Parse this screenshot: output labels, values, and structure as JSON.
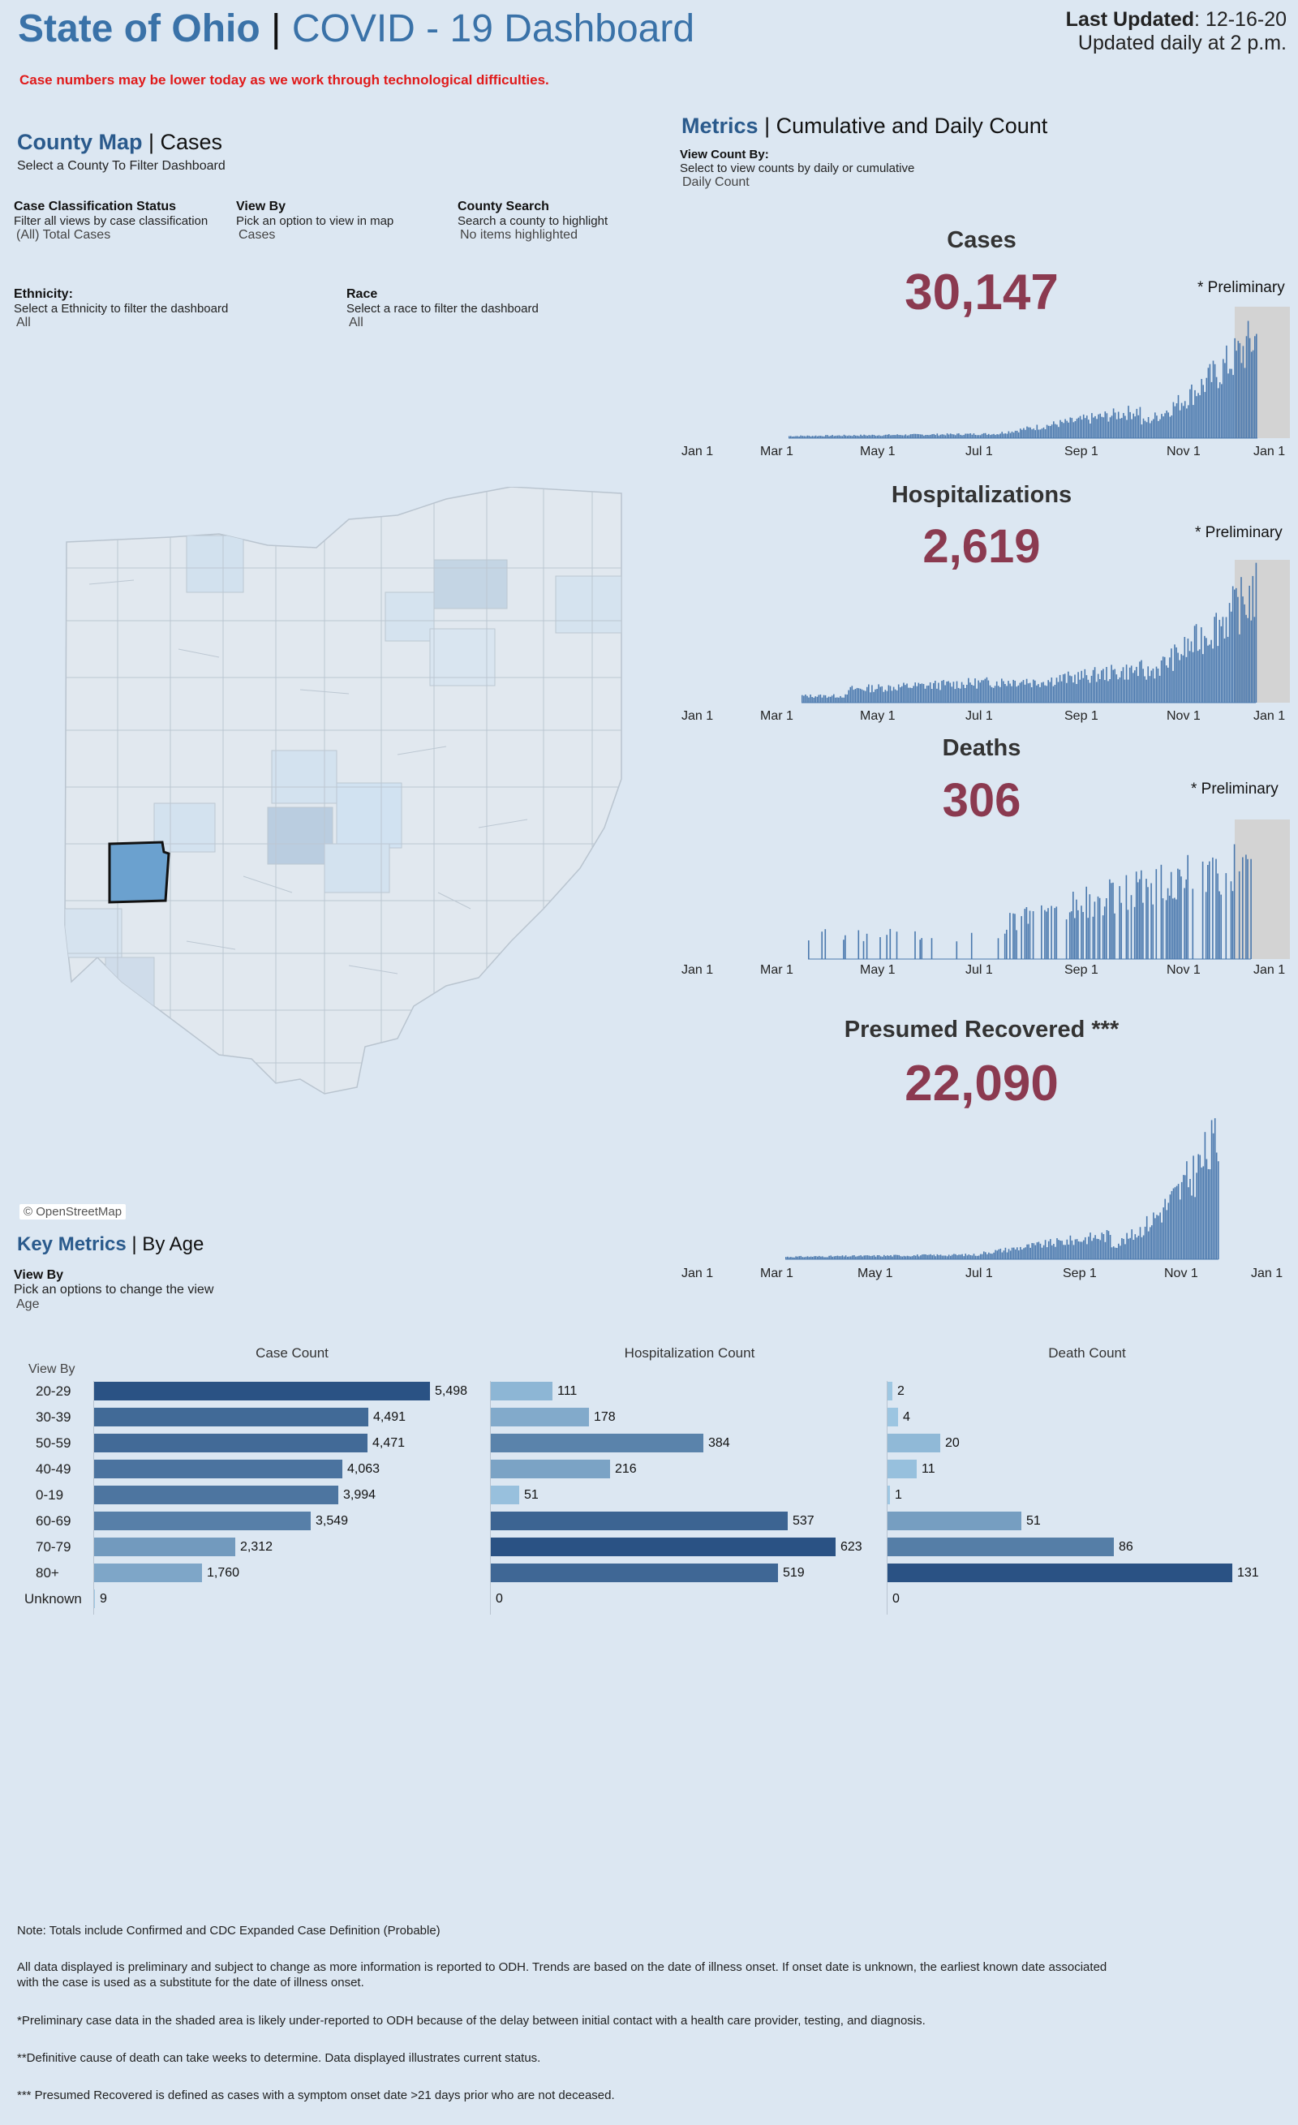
{
  "header": {
    "title_part1": "State of Ohio",
    "title_sep": "|",
    "title_part2": "COVID - 19 Dashboard",
    "last_updated_label": "Last Updated",
    "last_updated_value": ": 12-16-20",
    "update_schedule": "Updated daily at 2 p.m.",
    "warning": "Case numbers may be lower today as we work through technological difficulties."
  },
  "county_map": {
    "title_bold": "County Map",
    "title_rest": "| Cases",
    "subtitle": "Select a County To Filter Dashboard",
    "filters": {
      "case_classification": {
        "label": "Case Classification Status",
        "help": "Filter all views by case classification",
        "value": "(All) Total Cases"
      },
      "view_by": {
        "label": "View By",
        "help": "Pick an option to view in map",
        "value": "Cases"
      },
      "county_search": {
        "label": "County Search",
        "help": "Search a county to highlight",
        "value": "No items highlighted"
      },
      "ethnicity": {
        "label": "Ethnicity:",
        "help": "Select a Ethnicity  to filter the dashboard",
        "value": "All"
      },
      "race": {
        "label": "Race",
        "help": "Select a race to filter the dashboard",
        "value": "All"
      }
    },
    "attribution": "© OpenStreetMap"
  },
  "metrics": {
    "title_bold": "Metrics",
    "title_rest": "| Cumulative and Daily Count",
    "view_count_label": "View Count By:",
    "view_count_help": "Select to view counts by daily or cumulative",
    "view_count_value": "Daily Count",
    "x_ticks": [
      "Jan 1",
      "Mar 1",
      "May 1",
      "Jul 1",
      "Sep 1",
      "Nov 1",
      "Jan 1"
    ],
    "cases": {
      "title": "Cases",
      "value": "30,147",
      "note": "* Preliminary"
    },
    "hospitalizations": {
      "title": "Hospitalizations",
      "value": "2,619",
      "note": "* Preliminary"
    },
    "deaths": {
      "title": "Deaths",
      "value": "306",
      "note": "* Preliminary"
    },
    "recovered": {
      "title": "Presumed Recovered ***",
      "value": "22,090"
    },
    "bar_color": "#4a78ad",
    "shade_color": "#d3d3d3"
  },
  "key_metrics": {
    "title_bold": "Key Metrics",
    "title_rest": "| By Age",
    "view_by_label": "View By",
    "view_by_help": "Pick an options to change the view",
    "view_by_value": "Age",
    "col_view_by": "View By",
    "col_case": "Case Count",
    "col_hosp": "Hospitalization Count",
    "col_death": "Death Count",
    "groups": [
      "20-29",
      "30-39",
      "50-59",
      "40-49",
      "0-19",
      "60-69",
      "70-79",
      "80+",
      "Unknown"
    ],
    "cases": [
      5498,
      4491,
      4471,
      4063,
      3994,
      3549,
      2312,
      1760,
      9
    ],
    "hospitalizations": [
      111,
      178,
      384,
      216,
      51,
      537,
      623,
      519,
      0
    ],
    "deaths": [
      2,
      4,
      20,
      11,
      1,
      51,
      86,
      131,
      0
    ]
  },
  "footnotes": {
    "n1": "Note: Totals include Confirmed and CDC Expanded Case Definition (Probable)",
    "n2": "All data displayed is preliminary and subject to change as more information is reported to ODH. Trends are based on the date of illness onset.  If onset date is unknown, the earliest known date associated with the case is used as a substitute for the date of illness onset.",
    "n3": "*Preliminary case data in the shaded area is likely under-reported to ODH because of the delay between initial contact with a health care provider, testing, and diagnosis.",
    "n4": "**Definitive cause of death can take weeks to determine.  Data displayed illustrates current status.",
    "n5": "*** Presumed Recovered is defined as cases with a symptom onset date >21 days prior who are not deceased."
  }
}
